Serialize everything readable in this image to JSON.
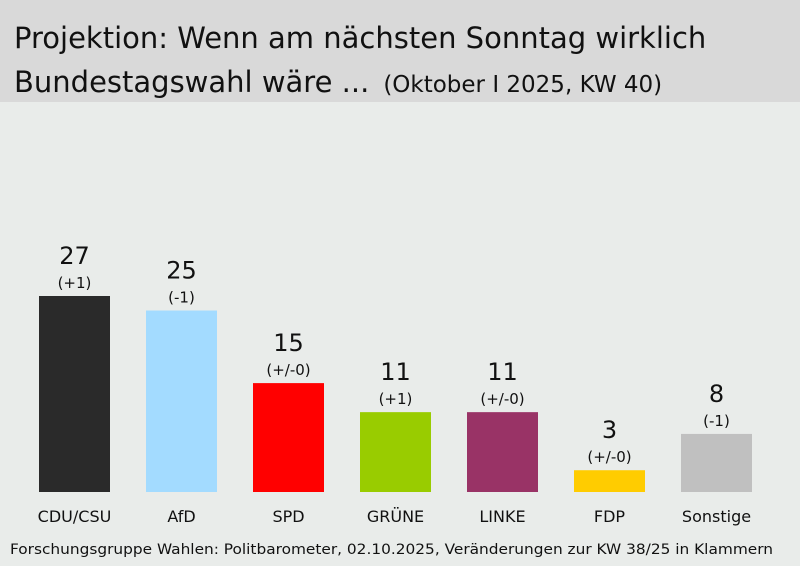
{
  "chart_data": {
    "type": "bar",
    "title_lines": [
      "Projektion: Wenn am nächsten Sonntag wirklich",
      "Bundestagswahl wäre ..."
    ],
    "subtitle": "(Oktober I 2025, KW 40)",
    "categories": [
      "CDU/CSU",
      "AfD",
      "SPD",
      "GRÜNE",
      "LINKE",
      "FDP",
      "Sonstige"
    ],
    "values": [
      27,
      25,
      15,
      11,
      11,
      3,
      8
    ],
    "changes": [
      "(+1)",
      "(-1)",
      "(+/-0)",
      "(+1)",
      "(+/-0)",
      "(+/-0)",
      "(-1)"
    ],
    "colors": [
      "#2a2a2a",
      "#a3dbff",
      "#ff0000",
      "#99cc00",
      "#993366",
      "#ffcc00",
      "#c0c0c0"
    ],
    "source": "Forschungsgruppe Wahlen: Politbarometer, 02.10.2025, Veränderungen zur KW 38/25 in Klammern"
  }
}
